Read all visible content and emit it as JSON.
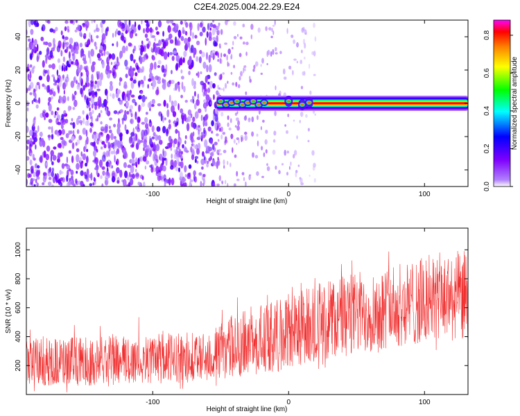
{
  "figure_title": "C2E4.2025.004.22.29.E24",
  "chart_data": [
    {
      "type": "heatmap",
      "xlabel": "Height of straight line (km)",
      "ylabel": "Frequency (Hz)",
      "xlim": [
        -193,
        132
      ],
      "ylim": [
        -50,
        50
      ],
      "xticks": [
        -100,
        0,
        100
      ],
      "xtick_labels": [
        "-100",
        "0",
        "100"
      ],
      "yticks": [
        -40,
        -20,
        0,
        20,
        40
      ],
      "ytick_labels": [
        "-40",
        "-20",
        "0",
        "20",
        "40"
      ],
      "colorbar": {
        "label": "Normalized spectral amplitude",
        "range": [
          0,
          0.88
        ],
        "ticks": [
          0,
          0.2,
          0.4,
          0.6,
          0.8
        ],
        "tick_labels": [
          "0.0",
          "0.2",
          "0.4",
          "0.6",
          "0.8"
        ],
        "colormap": [
          "#ffffff",
          "#7f00ff",
          "#0000ff",
          "#00ffff",
          "#00ff00",
          "#ffff00",
          "#ff8000",
          "#ff0000",
          "#ff00ff"
        ]
      },
      "signal_line": {
        "frequency_hz": 0,
        "start_km": -53,
        "end_km": 132,
        "peak_amplitude": 0.85,
        "blob_points_km": [
          -50,
          -46,
          -42,
          -38,
          -34,
          -30,
          -26,
          -22,
          -18,
          0,
          10,
          15
        ]
      },
      "noise": {
        "dense_region_km": [
          -193,
          -52
        ],
        "sparse_region_km": [
          -52,
          20
        ],
        "amplitude_range": [
          0.02,
          0.2
        ]
      },
      "grid": false
    },
    {
      "type": "line",
      "xlabel": "Height of straight line (km)",
      "ylabel": "SNR (10 * v/v)",
      "xlim": [
        -193,
        132
      ],
      "ylim": [
        0,
        1150
      ],
      "xticks": [
        -100,
        0,
        100
      ],
      "xtick_labels": [
        "-100",
        "0",
        "100"
      ],
      "yticks": [
        200,
        400,
        600,
        800,
        1000
      ],
      "ytick_labels": [
        "200",
        "400",
        "600",
        "800",
        "1000"
      ],
      "color": "#f03030",
      "trend": {
        "x": [
          -193,
          -150,
          -100,
          -60,
          -40,
          -20,
          0,
          20,
          50,
          80,
          110,
          132
        ],
        "y_low": [
          60,
          60,
          70,
          90,
          120,
          140,
          170,
          230,
          280,
          330,
          360,
          380
        ],
        "y_high": [
          390,
          400,
          420,
          430,
          560,
          620,
          700,
          780,
          850,
          900,
          980,
          1000
        ]
      },
      "grid": false
    }
  ]
}
